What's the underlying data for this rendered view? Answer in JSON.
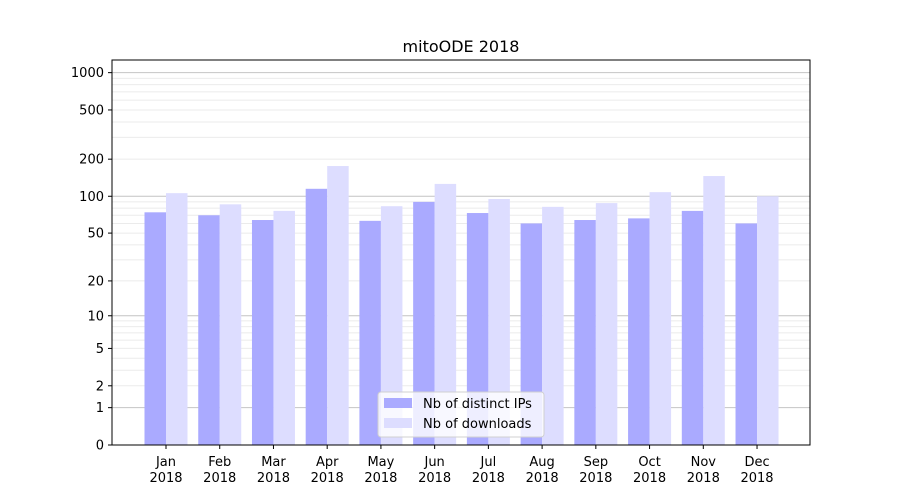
{
  "chart_data": {
    "type": "bar",
    "title": "mitoODE 2018",
    "xlabel": "",
    "ylabel": "",
    "yscale": "log(1+y)",
    "ylim": [
      0,
      1200
    ],
    "yticks": [
      0,
      1,
      2,
      5,
      10,
      20,
      50,
      100,
      200,
      500,
      1000
    ],
    "grid": true,
    "legend_position": "bottom-center",
    "categories": [
      "Jan\n2018",
      "Feb\n2018",
      "Mar\n2018",
      "Apr\n2018",
      "May\n2018",
      "Jun\n2018",
      "Jul\n2018",
      "Aug\n2018",
      "Sep\n2018",
      "Oct\n2018",
      "Nov\n2018",
      "Dec\n2018"
    ],
    "series": [
      {
        "name": "Nb of distinct IPs",
        "color": "#aaaaff",
        "values": [
          74,
          70,
          64,
          115,
          63,
          90,
          73,
          60,
          64,
          66,
          76,
          60
        ]
      },
      {
        "name": "Nb of downloads",
        "color": "#ddddff",
        "values": [
          106,
          86,
          76,
          176,
          83,
          126,
          95,
          82,
          88,
          108,
          146,
          100
        ]
      }
    ]
  }
}
